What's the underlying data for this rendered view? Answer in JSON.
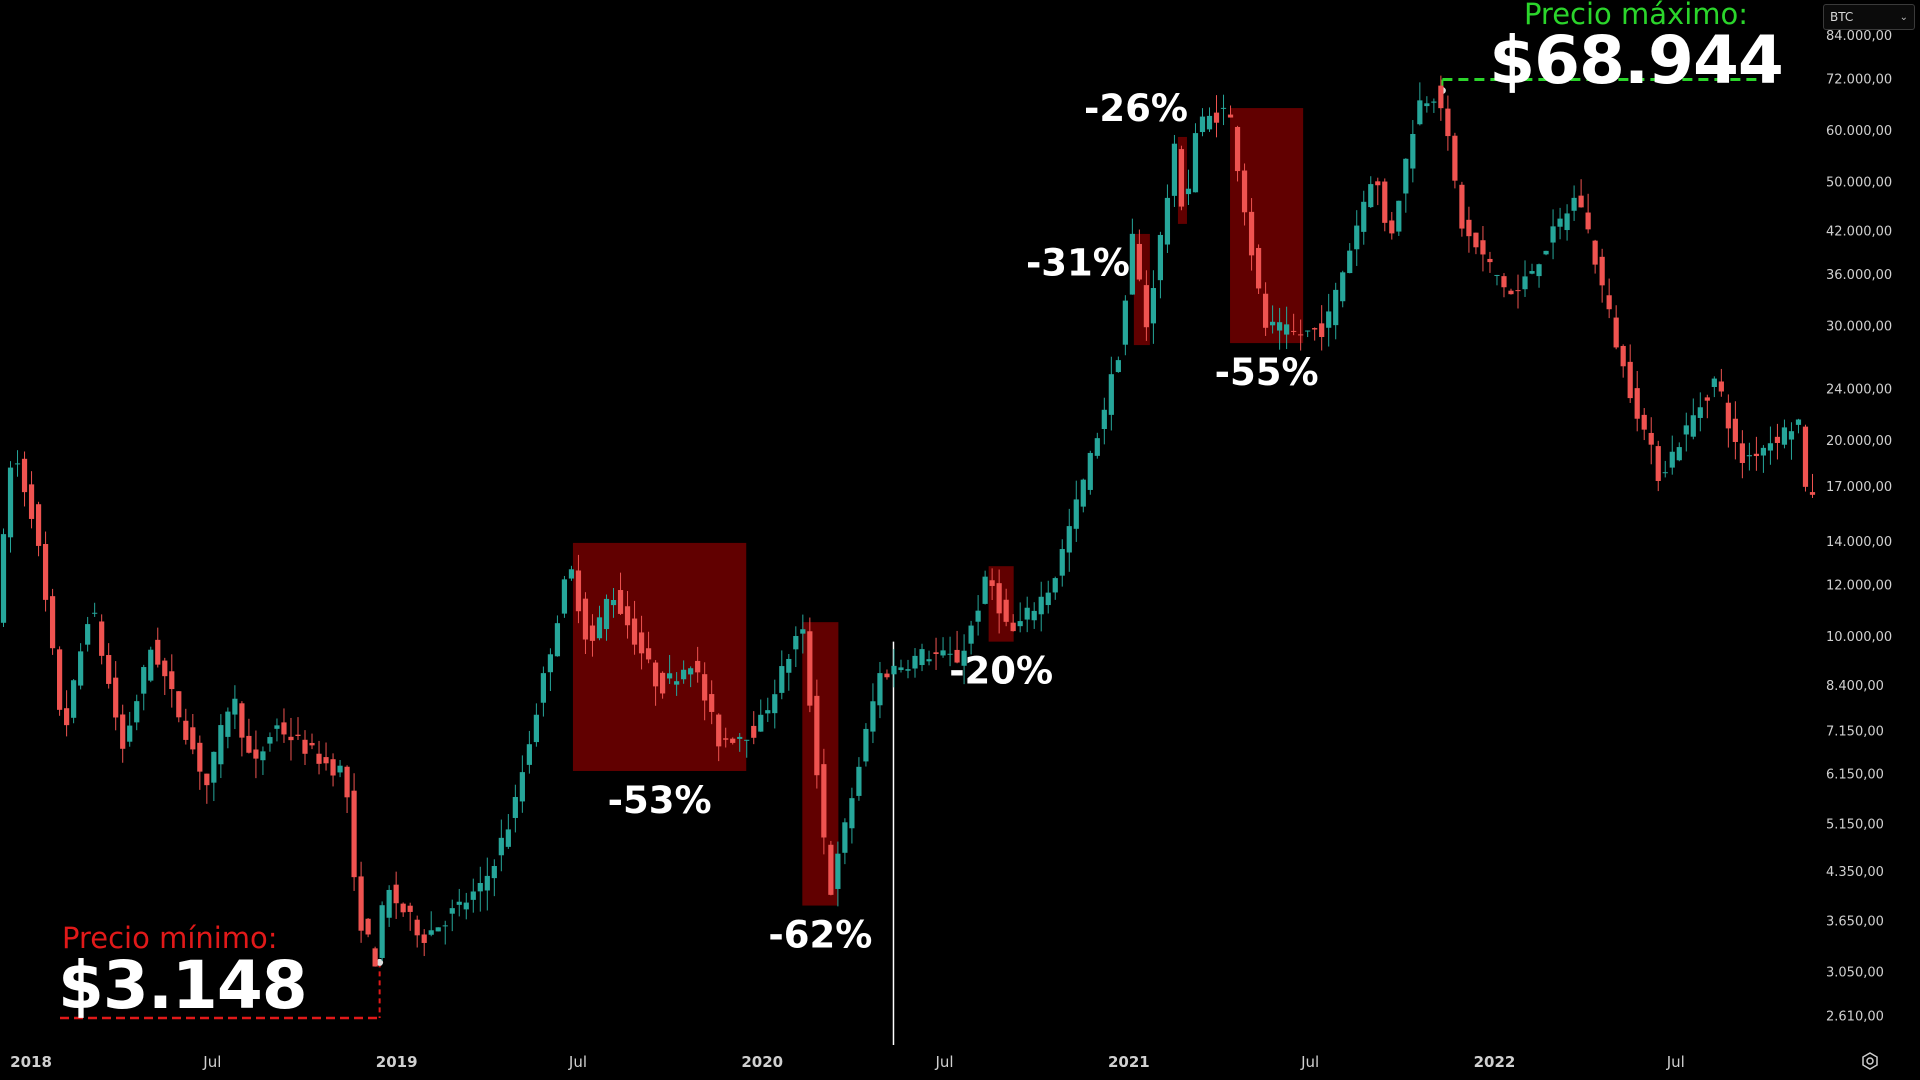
{
  "ticker_select": {
    "value": "BTC"
  },
  "icons": {
    "ticker_dropdown": "chevron-down-icon",
    "settings": "settings-icon"
  },
  "colors": {
    "up": "#26a69a",
    "down": "#ef5350",
    "drawdown_box": "#6b0000",
    "max_label": "#2bd52b",
    "min_label": "#e11919",
    "text": "#ffffff",
    "axis_text": "#d0d0d0"
  },
  "annotations": {
    "max_title": "Precio máximo:",
    "max_value": "$68.944",
    "min_title": "Precio mínimo:",
    "min_value": "$3.148"
  },
  "chart_data": {
    "type": "candlestick",
    "y_scale": "log",
    "ylim": [
      2350,
      95000
    ],
    "xlim": [
      "2017-12-01",
      "2022-11-20"
    ],
    "grid": false,
    "y_ticks": [
      {
        "value": 84000,
        "label": "84.000,00"
      },
      {
        "value": 72000,
        "label": "72.000,00"
      },
      {
        "value": 60000,
        "label": "60.000,00"
      },
      {
        "value": 50000,
        "label": "50.000,00"
      },
      {
        "value": 42000,
        "label": "42.000,00"
      },
      {
        "value": 36000,
        "label": "36.000,00"
      },
      {
        "value": 30000,
        "label": "30.000,00"
      },
      {
        "value": 24000,
        "label": "24.000,00"
      },
      {
        "value": 20000,
        "label": "20.000,00"
      },
      {
        "value": 17000,
        "label": "17.000,00"
      },
      {
        "value": 14000,
        "label": "14.000,00"
      },
      {
        "value": 12000,
        "label": "12.000,00"
      },
      {
        "value": 10000,
        "label": "10.000,00"
      },
      {
        "value": 8400,
        "label": "8.400,00"
      },
      {
        "value": 7150,
        "label": "7.150,00"
      },
      {
        "value": 6150,
        "label": "6.150,00"
      },
      {
        "value": 5150,
        "label": "5.150,00"
      },
      {
        "value": 4350,
        "label": "4.350,00"
      },
      {
        "value": 3650,
        "label": "3.650,00"
      },
      {
        "value": 3050,
        "label": "3.050,00"
      },
      {
        "value": 2610,
        "label": "2.610,00"
      }
    ],
    "x_ticks": [
      {
        "date": "2018-01-01",
        "label": "2018",
        "bold": true
      },
      {
        "date": "2018-07-01",
        "label": "Jul",
        "bold": false
      },
      {
        "date": "2019-01-01",
        "label": "2019",
        "bold": true
      },
      {
        "date": "2019-07-01",
        "label": "Jul",
        "bold": false
      },
      {
        "date": "2020-01-01",
        "label": "2020",
        "bold": true
      },
      {
        "date": "2020-07-01",
        "label": "Jul",
        "bold": false
      },
      {
        "date": "2021-01-01",
        "label": "2021",
        "bold": true
      },
      {
        "date": "2021-07-01",
        "label": "Jul",
        "bold": false
      },
      {
        "date": "2022-01-01",
        "label": "2022",
        "bold": true
      },
      {
        "date": "2022-07-01",
        "label": "Jul",
        "bold": false
      }
    ],
    "price_path": [
      [
        "2017-12-01",
        10800
      ],
      [
        "2017-12-17",
        19500
      ],
      [
        "2018-01-08",
        15000
      ],
      [
        "2018-02-06",
        7000
      ],
      [
        "2018-03-05",
        11300
      ],
      [
        "2018-04-06",
        6700
      ],
      [
        "2018-05-05",
        9700
      ],
      [
        "2018-06-29",
        5900
      ],
      [
        "2018-07-24",
        8200
      ],
      [
        "2018-08-14",
        6200
      ],
      [
        "2018-09-05",
        7300
      ],
      [
        "2018-10-30",
        6300
      ],
      [
        "2018-11-14",
        6200
      ],
      [
        "2018-11-25",
        3800
      ],
      [
        "2018-12-15",
        3148
      ],
      [
        "2018-12-24",
        4100
      ],
      [
        "2019-01-31",
        3450
      ],
      [
        "2019-03-31",
        4100
      ],
      [
        "2019-04-30",
        5300
      ],
      [
        "2019-05-31",
        8600
      ],
      [
        "2019-06-26",
        12900
      ],
      [
        "2019-07-16",
        9500
      ],
      [
        "2019-08-06",
        11800
      ],
      [
        "2019-09-24",
        8300
      ],
      [
        "2019-10-26",
        9200
      ],
      [
        "2019-11-22",
        6900
      ],
      [
        "2019-12-31",
        7200
      ],
      [
        "2020-02-13",
        10400
      ],
      [
        "2020-03-12",
        4000
      ],
      [
        "2020-04-30",
        8700
      ],
      [
        "2020-06-15",
        9400
      ],
      [
        "2020-07-20",
        9200
      ],
      [
        "2020-08-17",
        12400
      ],
      [
        "2020-09-08",
        10000
      ],
      [
        "2020-10-20",
        12000
      ],
      [
        "2020-11-30",
        19400
      ],
      [
        "2020-12-27",
        28000
      ],
      [
        "2021-01-08",
        41000
      ],
      [
        "2021-01-22",
        30000
      ],
      [
        "2021-02-21",
        58000
      ],
      [
        "2021-02-28",
        43000
      ],
      [
        "2021-03-13",
        61000
      ],
      [
        "2021-04-14",
        64800
      ],
      [
        "2021-05-19",
        30000
      ],
      [
        "2021-06-22",
        29000
      ],
      [
        "2021-07-20",
        29800
      ],
      [
        "2021-09-06",
        52500
      ],
      [
        "2021-09-21",
        40000
      ],
      [
        "2021-10-20",
        66000
      ],
      [
        "2021-11-10",
        68944
      ],
      [
        "2021-12-04",
        42000
      ],
      [
        "2022-01-24",
        33000
      ],
      [
        "2022-03-29",
        48000
      ],
      [
        "2022-05-12",
        26000
      ],
      [
        "2022-06-18",
        17600
      ],
      [
        "2022-08-14",
        25000
      ],
      [
        "2022-09-06",
        18500
      ],
      [
        "2022-11-05",
        21400
      ],
      [
        "2022-11-12",
        15800
      ],
      [
        "2022-11-15",
        16700
      ]
    ],
    "drawdowns": [
      {
        "label": "-53%",
        "x0": "2019-06-26",
        "x1": "2019-12-16",
        "y_top": 13900,
        "y_bottom": 6200,
        "label_pos": "below"
      },
      {
        "label": "-62%",
        "x0": "2020-02-10",
        "x1": "2020-03-17",
        "y_top": 10500,
        "y_bottom": 3850,
        "label_pos": "below"
      },
      {
        "label": "-20%",
        "x0": "2020-08-14",
        "x1": "2020-09-08",
        "y_top": 12800,
        "y_bottom": 9800,
        "label_pos": "below"
      },
      {
        "label": "-31%",
        "x0": "2021-01-06",
        "x1": "2021-01-22",
        "y_top": 41500,
        "y_bottom": 28000,
        "label_pos": "left"
      },
      {
        "label": "-26%",
        "x0": "2021-02-19",
        "x1": "2021-02-28",
        "y_top": 58500,
        "y_bottom": 43000,
        "label_pos": "above-left"
      },
      {
        "label": "-55%",
        "x0": "2021-04-12",
        "x1": "2021-06-24",
        "y_top": 64800,
        "y_bottom": 28200,
        "label_pos": "below"
      }
    ],
    "max_marker": {
      "date": "2021-11-10",
      "price": 68944
    },
    "min_marker": {
      "date": "2018-12-15",
      "price": 3148
    },
    "vertical_line": {
      "date": "2020-05-11"
    }
  }
}
